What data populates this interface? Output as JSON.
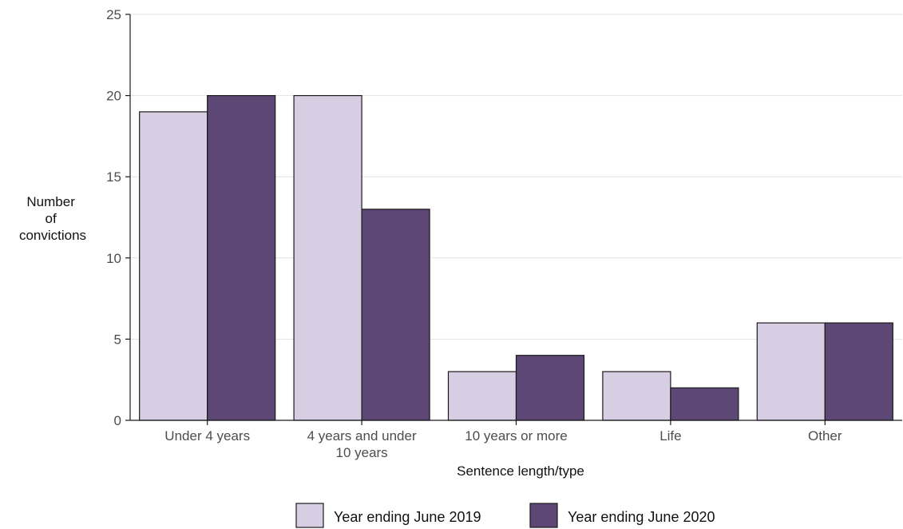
{
  "chart_data": {
    "type": "bar",
    "categories": [
      [
        "Under 4 years"
      ],
      [
        "4 years and under",
        "10 years"
      ],
      [
        "10 years or more"
      ],
      [
        "Life"
      ],
      [
        "Other"
      ]
    ],
    "series": [
      {
        "name": "Year ending June 2019",
        "color": "#d8cee3",
        "values": [
          19,
          20,
          3,
          3,
          6
        ]
      },
      {
        "name": "Year ending June 2020",
        "color": "#5c4775",
        "values": [
          20,
          13,
          4,
          2,
          6
        ]
      }
    ],
    "xlabel": "Sentence length/type",
    "ylabel": [
      "Number",
      "of",
      "convictions"
    ],
    "ylim": [
      0,
      25
    ],
    "yticks": [
      0,
      5,
      10,
      15,
      20,
      25
    ],
    "grid": "horizontal",
    "legend_position": "bottom"
  }
}
